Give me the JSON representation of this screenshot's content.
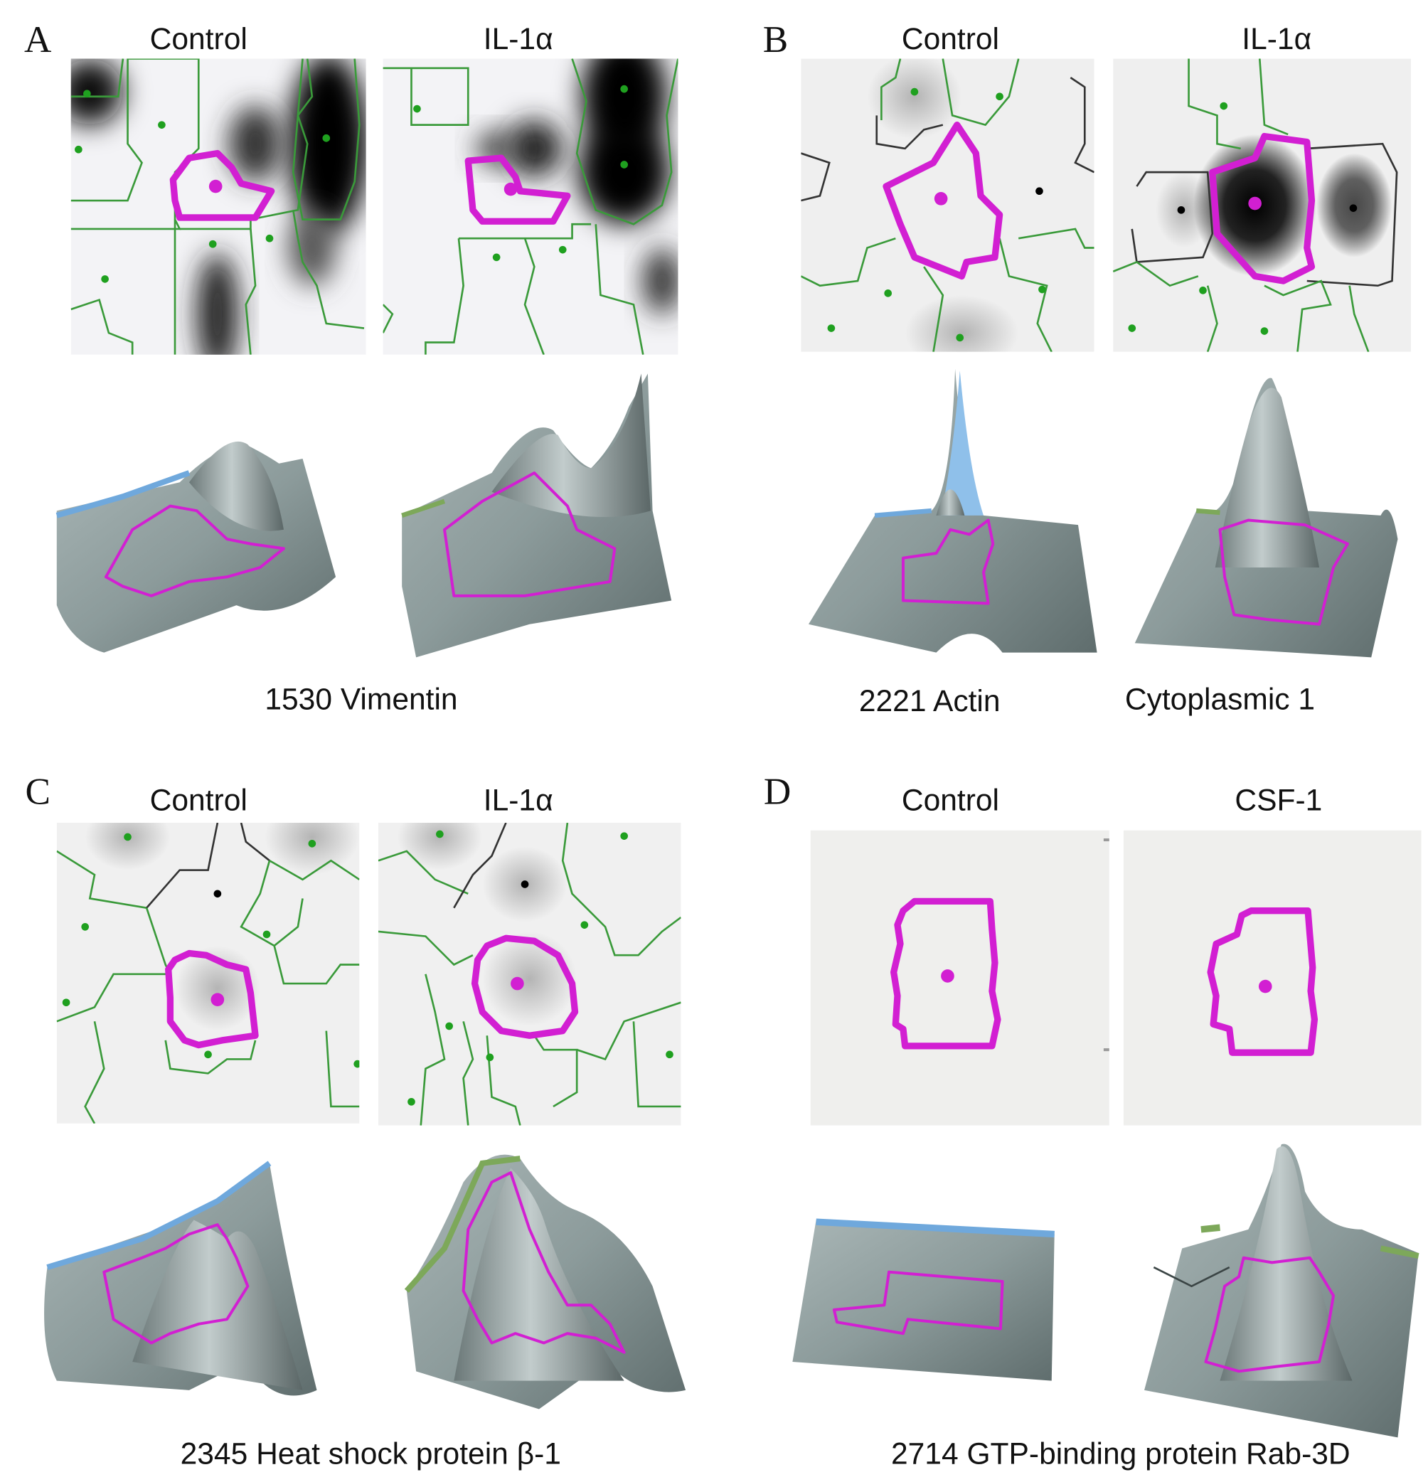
{
  "panels": [
    {
      "letter": "A",
      "conditions": [
        "Control",
        "IL-1α"
      ],
      "captions": [
        "1530 Vimentin"
      ]
    },
    {
      "letter": "B",
      "conditions": [
        "Control",
        "IL-1α"
      ],
      "captions": [
        "2221 Actin",
        "Cytoplasmic 1"
      ]
    },
    {
      "letter": "C",
      "conditions": [
        "Control",
        "IL-1α"
      ],
      "captions": [
        "2345 Heat shock protein β-1"
      ]
    },
    {
      "letter": "D",
      "conditions": [
        "Control",
        "CSF-1"
      ],
      "captions": [
        "2714 GTP-binding protein Rab-3D"
      ]
    }
  ]
}
